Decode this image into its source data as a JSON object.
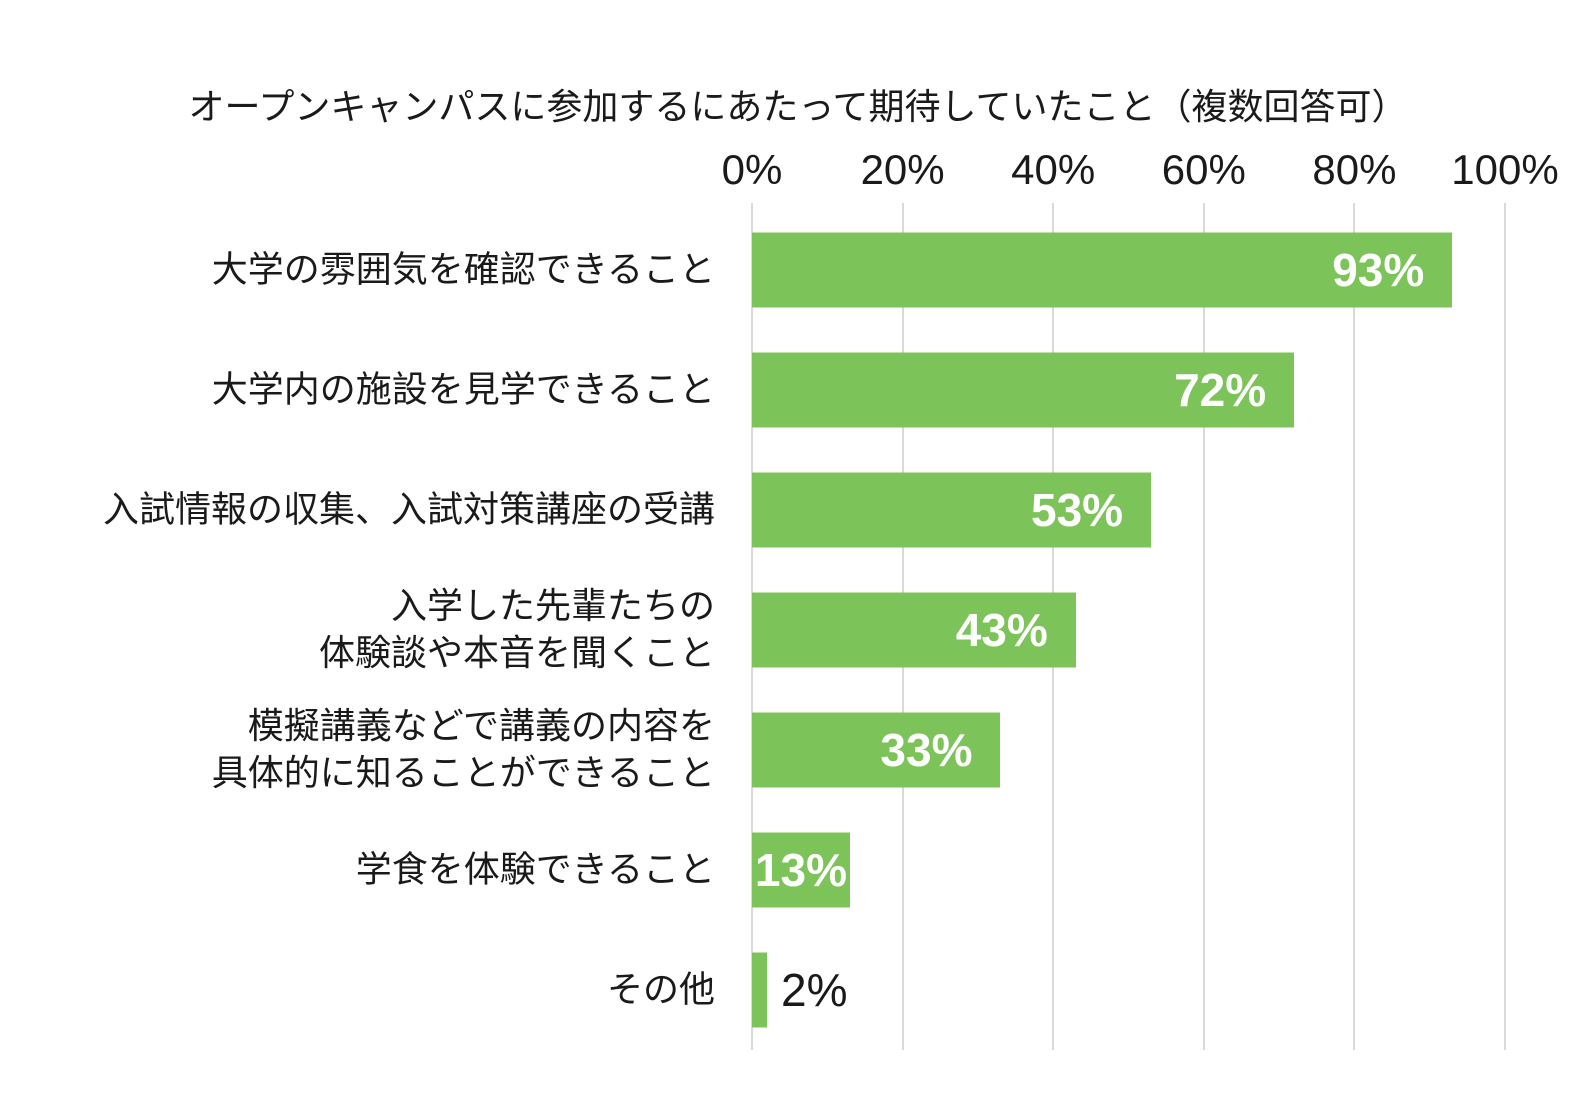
{
  "title": "オープンキャンパスに参加するにあたって期待していたこと（複数回答可）",
  "colors": {
    "bar": "#7CC45A",
    "grid": "#DADADA",
    "text": "#1A1A1A",
    "value_inside": "#FFFFFF",
    "value_outside": "#1A1A1A",
    "background": "#FFFFFF"
  },
  "chart_data": {
    "type": "bar",
    "orientation": "horizontal",
    "title": "オープンキャンパスに参加するにあたって期待していたこと（複数回答可）",
    "categories": [
      "大学の雰囲気を確認できること",
      "大学内の施設を見学できること",
      "入試情報の収集、入試対策講座の受講",
      "入学した先輩たちの\n体験談や本音を聞くこと",
      "模擬講義などで講義の内容を\n具体的に知ることができること",
      "学食を体験できること",
      "その他"
    ],
    "values": [
      93,
      72,
      53,
      43,
      33,
      13,
      2
    ],
    "value_labels": [
      "93%",
      "72%",
      "53%",
      "43%",
      "33%",
      "13%",
      "2%"
    ],
    "label_placement": [
      "inside-end",
      "inside-end",
      "inside-end",
      "inside-end",
      "inside-end",
      "center",
      "outside-end"
    ],
    "xlabel": "",
    "ylabel": "",
    "x_ticks": [
      "0%",
      "20%",
      "40%",
      "60%",
      "80%",
      "100%"
    ],
    "x_tick_values": [
      0,
      20,
      40,
      60,
      80,
      100
    ],
    "xlim": [
      0,
      100
    ],
    "grid": true,
    "legend": false
  }
}
